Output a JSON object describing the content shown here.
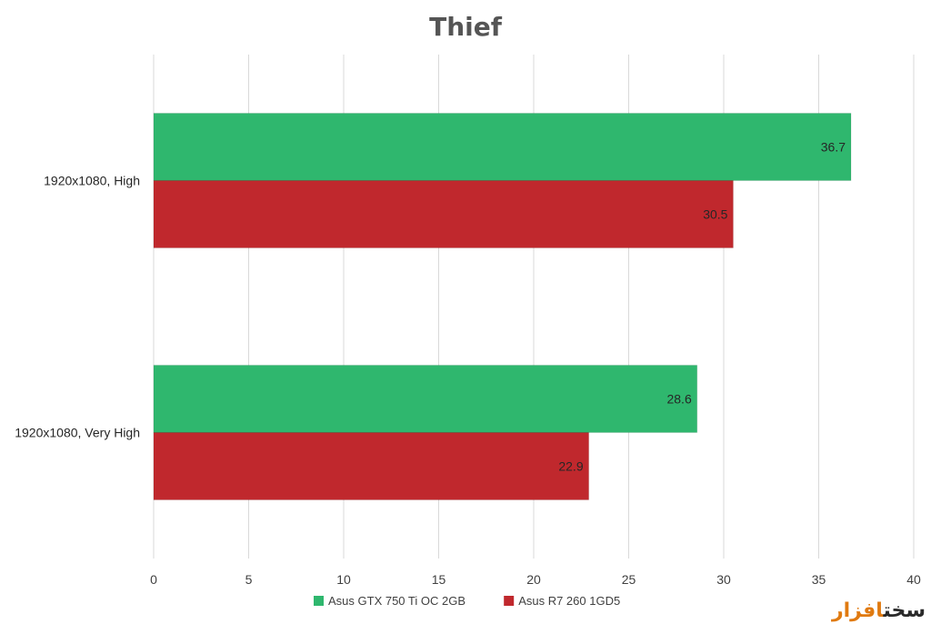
{
  "chart_data": {
    "type": "bar",
    "orientation": "horizontal",
    "title": "Thief",
    "categories": [
      "1920x1080, High",
      "1920x1080, Very High"
    ],
    "series": [
      {
        "name": "Asus GTX 750 Ti OC 2GB",
        "color": "#2fb76e",
        "values": [
          36.7,
          28.6
        ]
      },
      {
        "name": "Asus R7 260 1GD5",
        "color": "#c0282d",
        "values": [
          30.5,
          22.9
        ]
      }
    ],
    "xlim": [
      0,
      40
    ],
    "xticks": [
      0,
      5,
      10,
      15,
      20,
      25,
      30,
      35,
      40
    ],
    "grid": true,
    "legend_position": "bottom"
  },
  "watermark": {
    "text_main": "سخت",
    "text_accent": "افزار"
  }
}
